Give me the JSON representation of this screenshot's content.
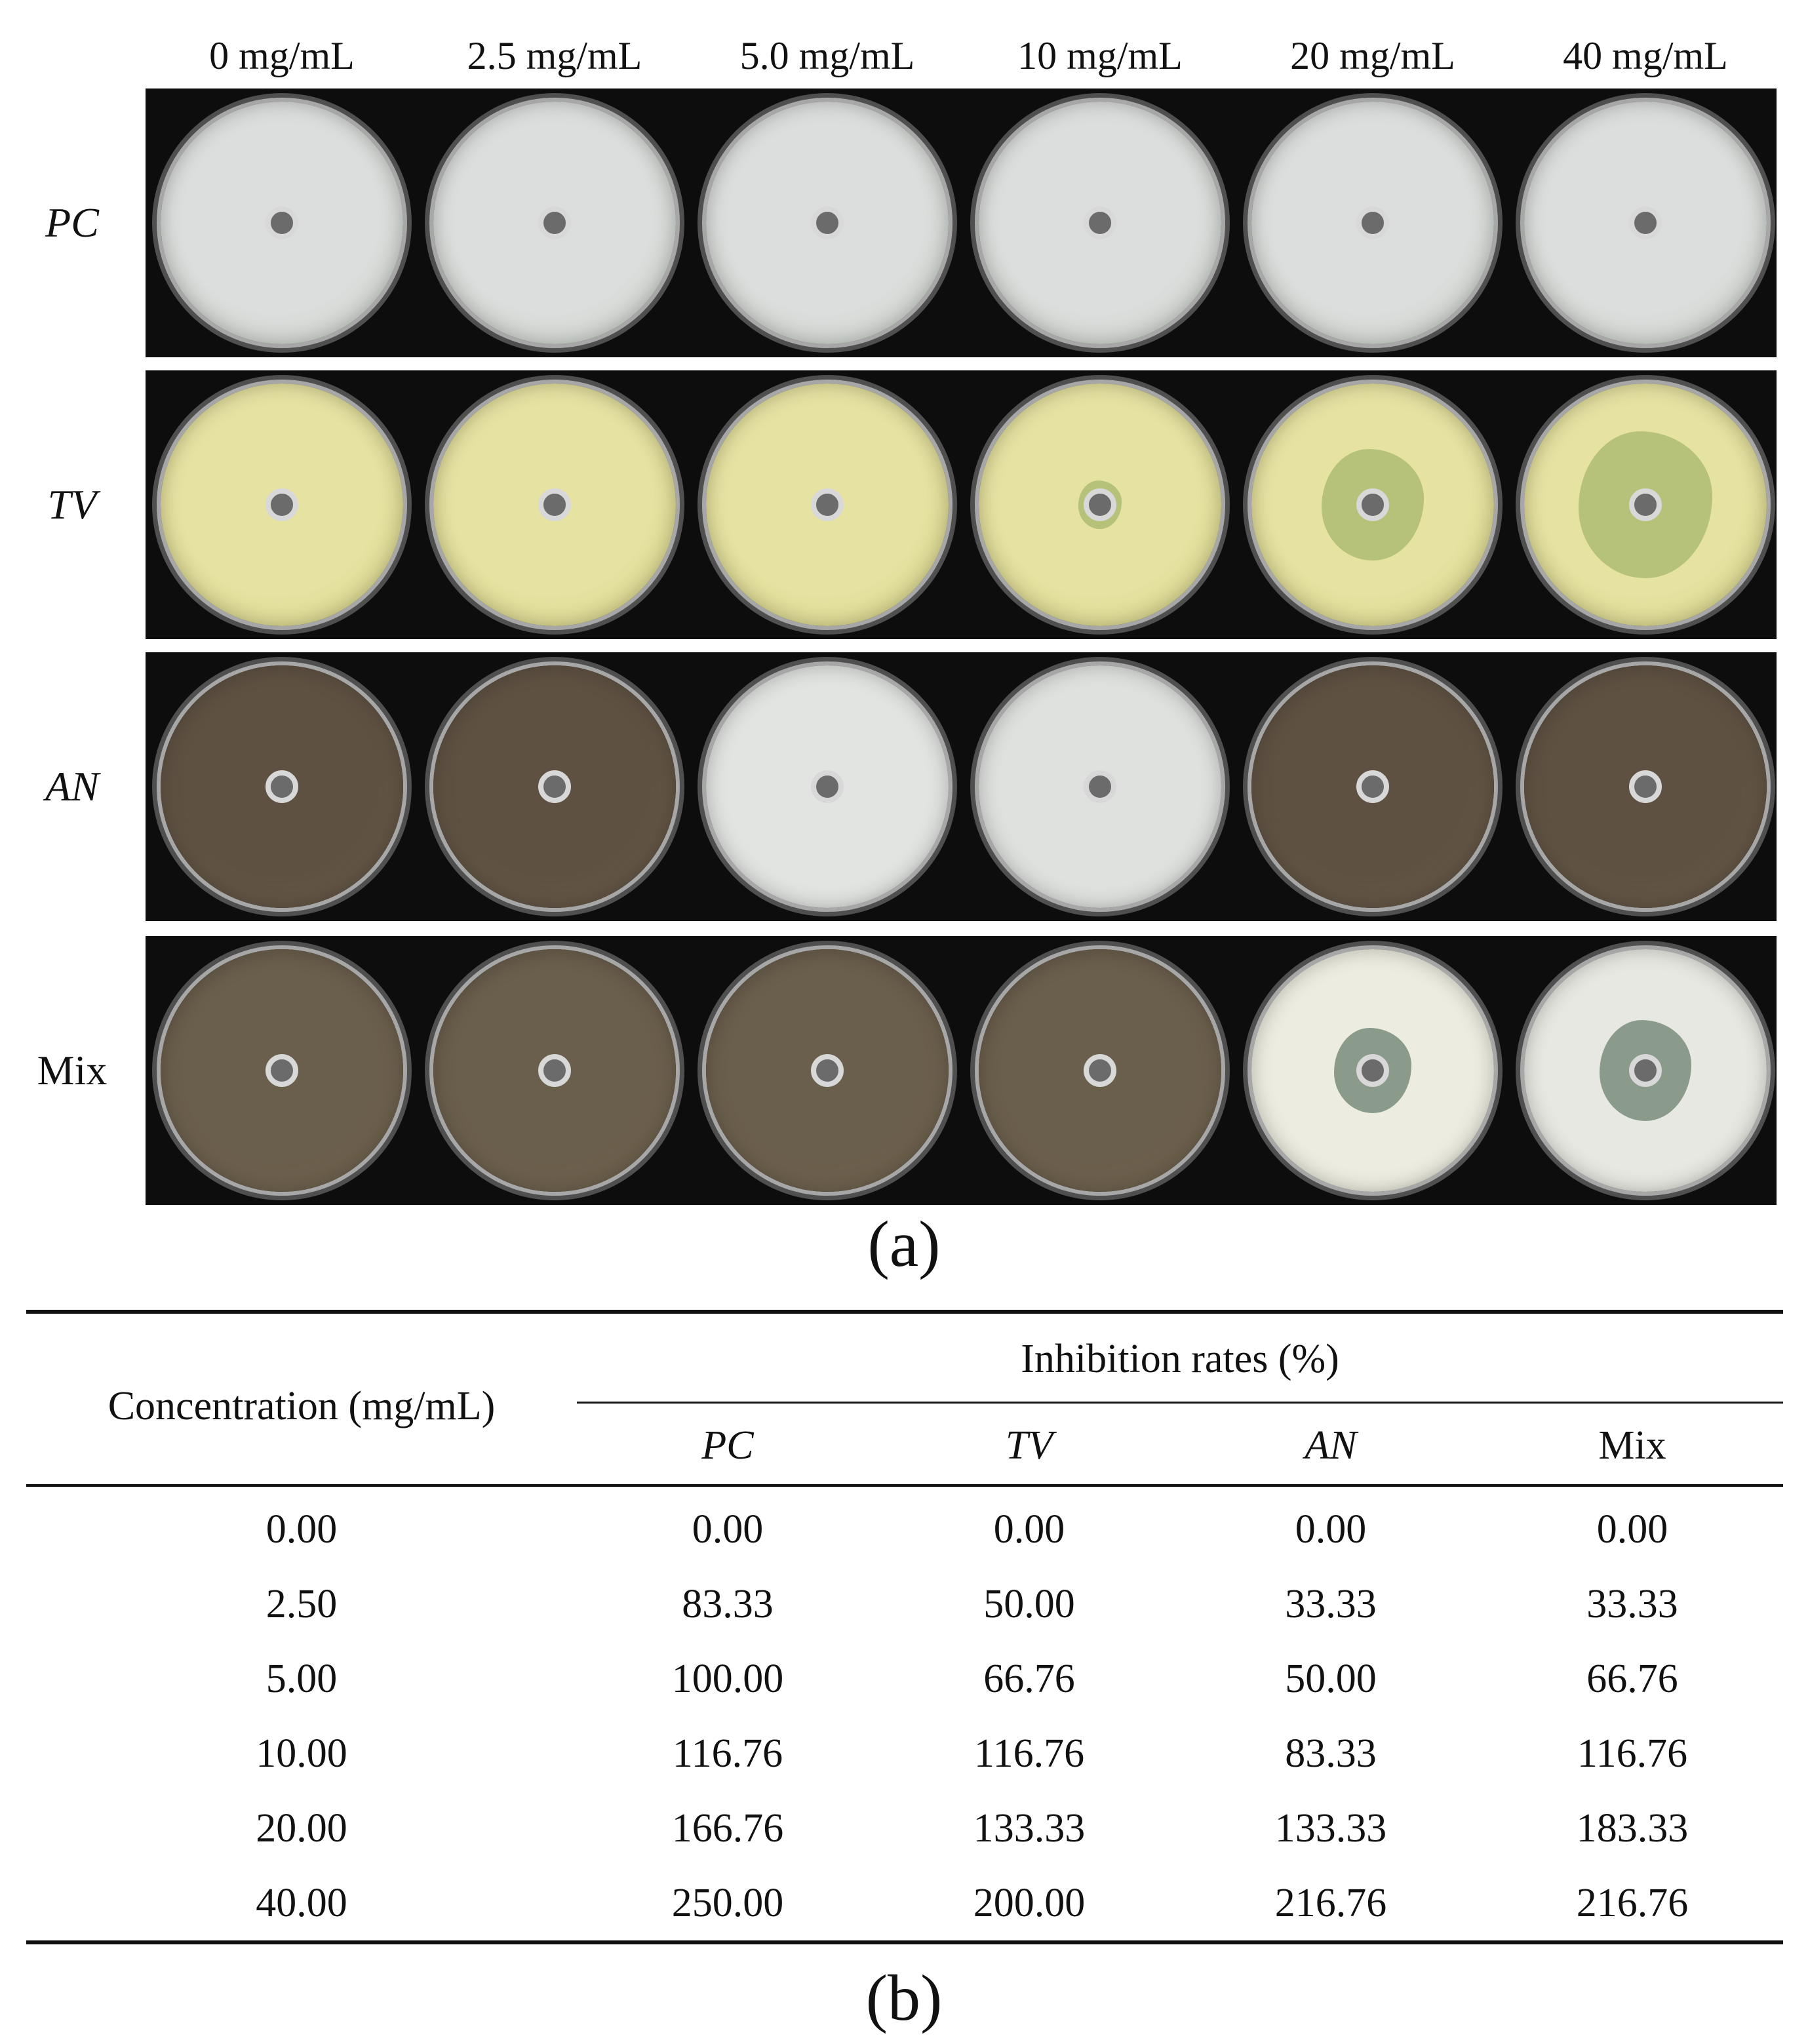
{
  "panel_a": {
    "caption": "(a)",
    "concentrations": [
      "0 mg/mL",
      "2.5 mg/mL",
      "5.0 mg/mL",
      "10 mg/mL",
      "20 mg/mL",
      "40 mg/mL"
    ],
    "rows": [
      {
        "label": "PC",
        "italic": true,
        "dish_color": "#dcdedd",
        "agar_color": "#c9cfc6",
        "zone_color": "#cfd3cc",
        "zones": [
          0,
          0,
          0,
          0,
          0.12,
          0.12
        ]
      },
      {
        "label": "TV",
        "italic": true,
        "dish_color": "#e6e2a2",
        "agar_color": "#d8d58b",
        "zone_color": "#b6c27a",
        "zones": [
          0,
          0,
          0,
          0.18,
          0.42,
          0.55
        ]
      },
      {
        "label": "AN",
        "italic": true,
        "dish_color": "#5e5142",
        "agar_color": "#6b5c4a",
        "zone_color": "#e4e8e4",
        "zones": [
          0,
          0,
          0,
          0,
          0.1,
          0.12
        ],
        "dish_override": [
          null,
          null,
          "#e2e4e2",
          "#dfe1df",
          null,
          null
        ]
      },
      {
        "label": "Mix",
        "italic": false,
        "dish_color": "#6a5e4c",
        "agar_color": "#73654f",
        "zone_color": "#8a9b8c",
        "zones": [
          0,
          0,
          0.08,
          0.1,
          0.32,
          0.38
        ],
        "dish_override": [
          null,
          null,
          null,
          null,
          "#ecece0",
          "#e8e8e2"
        ]
      }
    ]
  },
  "panel_b": {
    "caption": "(b)",
    "row_header": "Concentration (mg/mL)",
    "group_header": "Inhibition rates (%)",
    "columns": [
      {
        "label": "PC",
        "italic": true
      },
      {
        "label": "TV",
        "italic": true
      },
      {
        "label": "AN",
        "italic": true
      },
      {
        "label": "Mix",
        "italic": false
      }
    ],
    "rows": [
      [
        "0.00",
        "0.00",
        "0.00",
        "0.00",
        "0.00"
      ],
      [
        "2.50",
        "83.33",
        "50.00",
        "33.33",
        "33.33"
      ],
      [
        "5.00",
        "100.00",
        "66.76",
        "50.00",
        "66.76"
      ],
      [
        "10.00",
        "116.76",
        "116.76",
        "83.33",
        "116.76"
      ],
      [
        "20.00",
        "166.76",
        "133.33",
        "133.33",
        "183.33"
      ],
      [
        "40.00",
        "250.00",
        "200.00",
        "216.76",
        "216.76"
      ]
    ]
  }
}
